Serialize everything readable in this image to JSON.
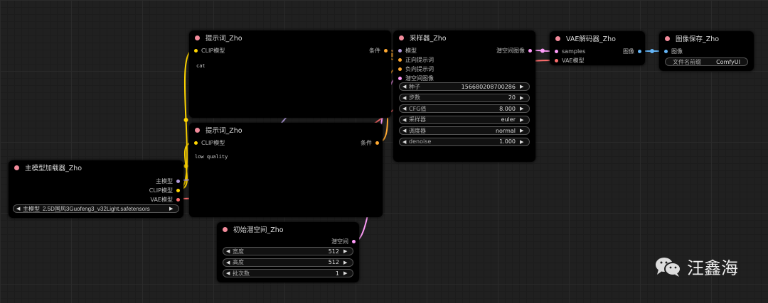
{
  "colors": {
    "model": "#b39ddb",
    "clip": "#ffd500",
    "vae": "#ff6e6e",
    "cond": "#ffa931",
    "latent": "#ff9cf9",
    "image": "#64b5f6"
  },
  "prompt_pos": {
    "title": "提示词_Zho",
    "in_clip": "CLIP模型",
    "out_cond": "条件",
    "text": "cat"
  },
  "prompt_neg": {
    "title": "提示词_Zho",
    "in_clip": "CLIP模型",
    "out_cond": "条件",
    "text": "low quality"
  },
  "loader": {
    "title": "主模型加载器_Zho",
    "out_model": "主模型",
    "out_clip": "CLIP模型",
    "out_vae": "VAE模型",
    "ckpt_label": "主模型",
    "ckpt_value": "2.5D国风3Guofeng3_v32Light.safetensors"
  },
  "latent": {
    "title": "初始潜空间_Zho",
    "out": "潜空间",
    "widgets": [
      {
        "label": "宽度",
        "value": "512"
      },
      {
        "label": "高度",
        "value": "512"
      },
      {
        "label": "批次数",
        "value": "1"
      }
    ]
  },
  "sampler": {
    "title": "采样器_Zho",
    "in_model": "模型",
    "in_pos": "正向提示词",
    "in_neg": "负向提示词",
    "in_latent": "潜空间图像",
    "out": "潜空间图像",
    "widgets": [
      {
        "label": "种子",
        "value": "156680208700286"
      },
      {
        "label": "步数",
        "value": "20"
      },
      {
        "label": "CFG值",
        "value": "8.000"
      },
      {
        "label": "采样器",
        "value": "euler"
      },
      {
        "label": "调度器",
        "value": "normal"
      },
      {
        "label": "denoise",
        "value": "1.000"
      }
    ]
  },
  "vae_decode": {
    "title": "VAE解码器_Zho",
    "in_samples": "samples",
    "in_vae": "VAE模型",
    "out": "图像"
  },
  "save": {
    "title": "图像保存_Zho",
    "in_image": "图像",
    "prefix_label": "文件名前缀",
    "prefix_value": "ComfyUI"
  },
  "watermark": {
    "icon": "wechat-icon",
    "text": "汪鑫海"
  }
}
